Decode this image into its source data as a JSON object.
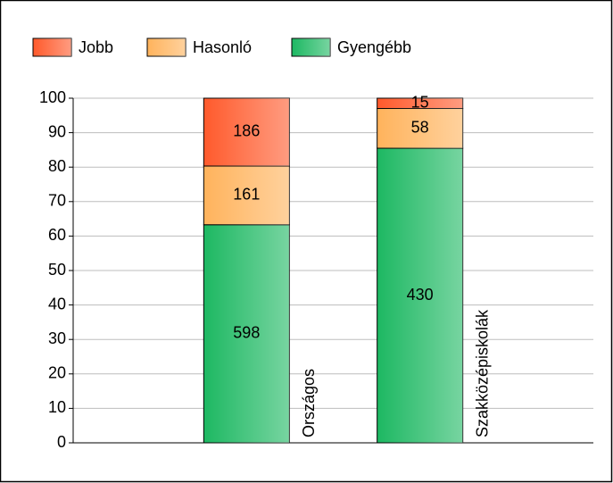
{
  "chart_data": {
    "type": "bar",
    "stack": "percent",
    "categories": [
      "Országos",
      "Szakközépiskolák"
    ],
    "series": [
      {
        "name": "Gyengébb",
        "color": "#1db862",
        "values": [
          598,
          430
        ]
      },
      {
        "name": "Hasonló",
        "color": "#ffb35c",
        "values": [
          161,
          58
        ]
      },
      {
        "name": "Jobb",
        "color": "#ff5a2c",
        "values": [
          186,
          15
        ]
      }
    ],
    "ylim": [
      0,
      100
    ],
    "yticks": [
      0,
      10,
      20,
      30,
      40,
      50,
      60,
      70,
      80,
      90,
      100
    ],
    "grid": true,
    "legend": "top"
  }
}
